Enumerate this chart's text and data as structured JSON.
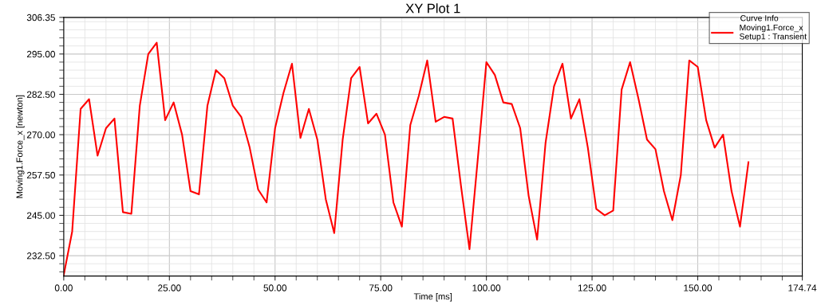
{
  "chart_data": {
    "type": "line",
    "title": "XY Plot 1",
    "xlabel": "Time [ms]",
    "ylabel": "Moving1.Force_x [newton]",
    "legend_title": "Curve Info",
    "x": [
      0,
      2,
      4,
      6,
      8,
      10,
      12,
      14,
      16,
      18,
      20,
      22,
      24,
      26,
      28,
      30,
      32,
      34,
      36,
      38,
      40,
      42,
      44,
      46,
      48,
      50,
      52,
      54,
      56,
      58,
      60,
      62,
      64,
      66,
      68,
      70,
      72,
      74,
      76,
      78,
      80,
      82,
      84,
      86,
      88,
      90,
      92,
      94,
      96,
      98,
      100,
      102,
      104,
      106,
      108,
      110,
      112,
      114,
      116,
      118,
      120,
      122,
      124,
      126,
      128,
      130,
      132,
      134,
      136,
      138,
      140,
      142,
      144,
      146,
      148,
      150,
      152,
      154,
      156,
      158,
      160,
      162
    ],
    "series": [
      {
        "name": "Moving1.Force_x\nSetup1 : Transient",
        "color": "#ff0000",
        "values": [
          226.5,
          240,
          278,
          281,
          263.5,
          272,
          275,
          246,
          245.5,
          279,
          295,
          298.5,
          274.5,
          280,
          270,
          252.5,
          251.5,
          279,
          290,
          287.5,
          279,
          275.5,
          266,
          253,
          249,
          272,
          283,
          292,
          269,
          278,
          268.5,
          250,
          239.5,
          268.5,
          287.5,
          291,
          273.5,
          276.5,
          270,
          249,
          241.5,
          273,
          282,
          293,
          274,
          275.5,
          275,
          254,
          234.5,
          263,
          292.5,
          288.5,
          280,
          279.5,
          272,
          251,
          237.5,
          267.5,
          285,
          292,
          275,
          281,
          266,
          247,
          245,
          246.5,
          284,
          292.5,
          281,
          268.5,
          265.5,
          252.5,
          243.5,
          257.5,
          293,
          291,
          274.5,
          266,
          270,
          252.5,
          241.5,
          261.5
        ]
      }
    ],
    "xlim": [
      0,
      174.74
    ],
    "ylim": [
      226.2,
      306.35
    ],
    "xticks": [
      {
        "value": 0,
        "label": "0.00"
      },
      {
        "value": 25,
        "label": "25.00"
      },
      {
        "value": 50,
        "label": "50.00"
      },
      {
        "value": 75,
        "label": "75.00"
      },
      {
        "value": 100,
        "label": "100.00"
      },
      {
        "value": 125,
        "label": "125.00"
      },
      {
        "value": 150,
        "label": "150.00"
      },
      {
        "value": 174.74,
        "label": "174.74"
      }
    ],
    "yticks": [
      {
        "value": 232.5,
        "label": "232.50"
      },
      {
        "value": 245,
        "label": "245.00"
      },
      {
        "value": 257.5,
        "label": "257.50"
      },
      {
        "value": 270,
        "label": "270.00"
      },
      {
        "value": 282.5,
        "label": "282.50"
      },
      {
        "value": 295,
        "label": "295.00"
      },
      {
        "value": 306.35,
        "label": "306.35"
      }
    ],
    "grid": true,
    "legend": "top right",
    "marker": "none",
    "line_style": "solid"
  }
}
